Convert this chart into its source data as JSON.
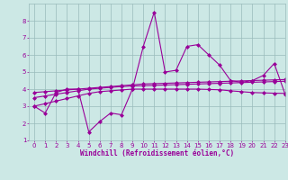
{
  "x": [
    0,
    1,
    2,
    3,
    4,
    5,
    6,
    7,
    8,
    9,
    10,
    11,
    12,
    13,
    14,
    15,
    16,
    17,
    18,
    19,
    20,
    21,
    22,
    23
  ],
  "line1_y": [
    3.0,
    2.6,
    3.8,
    4.0,
    4.0,
    1.5,
    2.1,
    2.6,
    2.5,
    4.0,
    6.5,
    8.5,
    5.0,
    5.1,
    6.5,
    6.6,
    6.0,
    5.4,
    4.5,
    4.4,
    4.5,
    4.8,
    5.5,
    3.7
  ],
  "line2_y": [
    3.8,
    3.85,
    3.9,
    3.95,
    4.0,
    4.05,
    4.1,
    4.15,
    4.2,
    4.25,
    4.3,
    4.32,
    4.34,
    4.36,
    4.38,
    4.4,
    4.42,
    4.44,
    4.46,
    4.48,
    4.5,
    4.52,
    4.54,
    4.56
  ],
  "line3_y": [
    3.5,
    3.6,
    3.7,
    3.8,
    3.9,
    4.0,
    4.05,
    4.1,
    4.15,
    4.18,
    4.2,
    4.22,
    4.24,
    4.26,
    4.28,
    4.3,
    4.32,
    4.34,
    4.36,
    4.38,
    4.4,
    4.42,
    4.44,
    4.46
  ],
  "line4_y": [
    3.0,
    3.15,
    3.3,
    3.45,
    3.6,
    3.75,
    3.85,
    3.9,
    3.95,
    4.0,
    4.0,
    4.0,
    4.0,
    4.0,
    4.0,
    4.0,
    3.98,
    3.96,
    3.9,
    3.85,
    3.8,
    3.78,
    3.76,
    3.75
  ],
  "bg_color": "#cce8e5",
  "line_color": "#990099",
  "grid_color": "#99bbbb",
  "xlabel": "Windchill (Refroidissement éolien,°C)",
  "xlabel_color": "#990099",
  "ylim": [
    1,
    9
  ],
  "xlim": [
    -0.5,
    23
  ],
  "yticks": [
    1,
    2,
    3,
    4,
    5,
    6,
    7,
    8
  ],
  "xticks": [
    0,
    1,
    2,
    3,
    4,
    5,
    6,
    7,
    8,
    9,
    10,
    11,
    12,
    13,
    14,
    15,
    16,
    17,
    18,
    19,
    20,
    21,
    22,
    23
  ],
  "tick_color": "#990099",
  "marker": "D",
  "markersize": 2.0,
  "linewidth": 0.8,
  "tick_fontsize": 5.0,
  "xlabel_fontsize": 5.5
}
